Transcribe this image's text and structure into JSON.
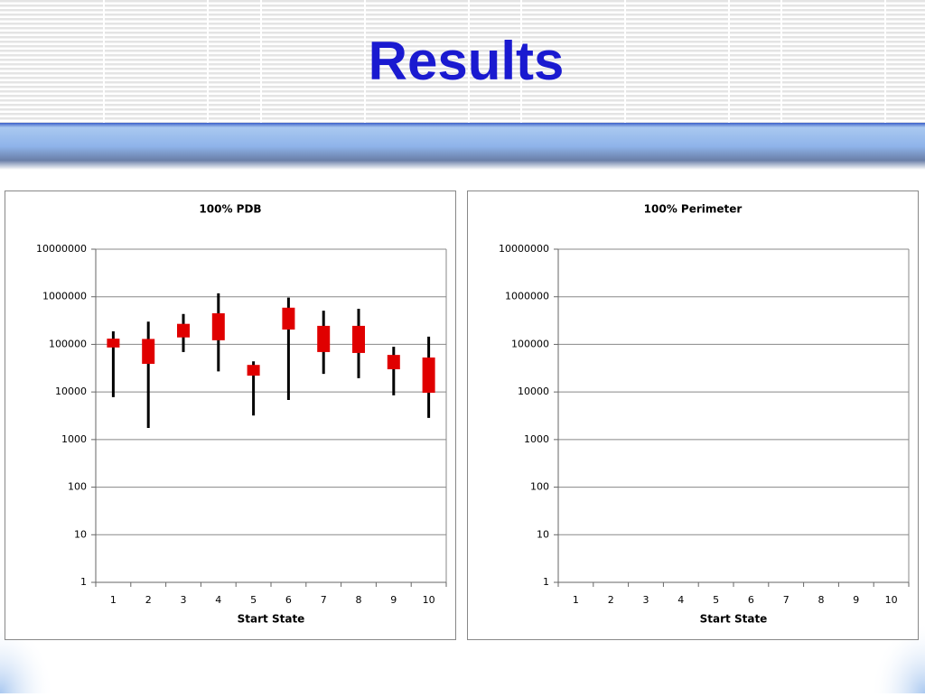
{
  "slide": {
    "title": "Results"
  },
  "chart_data": [
    {
      "type": "candlestick",
      "title": "100% PDB",
      "x_label": "Start State",
      "categories": [
        "1",
        "2",
        "3",
        "4",
        "5",
        "6",
        "7",
        "8",
        "9",
        "10"
      ],
      "max": [
        188000,
        300000,
        435000,
        1180000,
        44000,
        960000,
        510000,
        560000,
        89000,
        145000
      ],
      "q3": [
        132000,
        130000,
        270000,
        450000,
        37000,
        590000,
        245000,
        245000,
        60000,
        53000
      ],
      "q1": [
        86000,
        39000,
        140000,
        122000,
        22000,
        205000,
        69000,
        66000,
        30000,
        9600
      ],
      "min": [
        7800,
        1750,
        69000,
        27000,
        3200,
        6800,
        24000,
        19500,
        8500,
        2850
      ],
      "color": "#e00000",
      "whisker_color": "#000000",
      "log": true,
      "grid": true,
      "ylim": [
        1,
        10000000
      ],
      "yticks": [
        1,
        10,
        100,
        1000,
        10000,
        100000,
        1000000,
        10000000
      ]
    },
    {
      "type": "candlestick",
      "title": "100% Perimeter",
      "x_label": "Start State",
      "categories": [
        "1",
        "2",
        "3",
        "4",
        "5",
        "6",
        "7",
        "8",
        "9",
        "10"
      ],
      "log": true,
      "grid": true,
      "ylim": [
        1,
        10000000
      ],
      "yticks": [
        1,
        10,
        100,
        1000,
        10000,
        100000,
        1000000,
        10000000
      ]
    }
  ]
}
